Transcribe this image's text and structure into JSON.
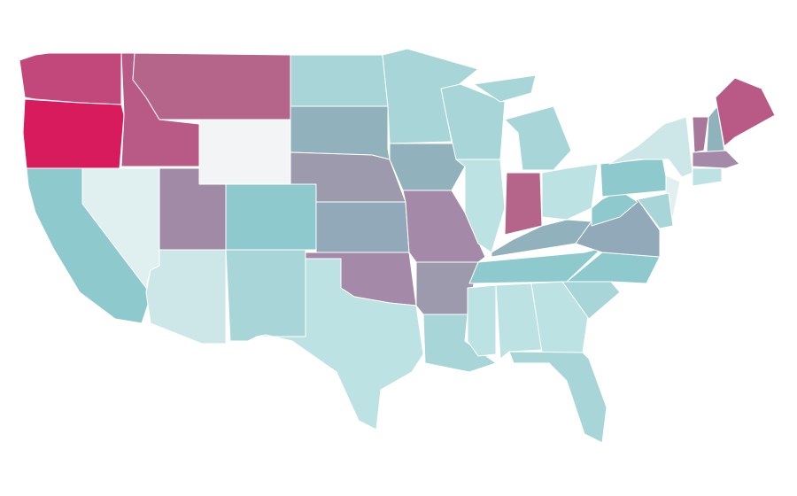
{
  "map": {
    "colors": [
      "#c2477a",
      "#d81b5c",
      "#b85a85",
      "#b56589",
      "#f3f4f5",
      "#e0f0f1",
      "#8ecacd",
      "#a08aa6",
      "#cde6e8",
      "#8ecacd",
      "#a8d6d8",
      "#a8d6d8",
      "#91b1bd",
      "#9d9aae",
      "#91a9b8",
      "#a48aa8",
      "#bde2e4",
      "#a8d6d8",
      "#91b1bd",
      "#a48aa8",
      "#9d9aae",
      "#a8d6d8",
      "#a8d6d8",
      "#bde2e4",
      "#a8d6d8",
      "#a8d6d8",
      "#b56589",
      "#bde2e4",
      "#91b1bd",
      "#8ecacd",
      "#bde2e4",
      "#bde2e4",
      "#bde2e4",
      "#a8d6d8",
      "#a8d6d8",
      "#8ecacd",
      "#91a9b8",
      "#8ecacd",
      "#8ecacd",
      "#cde6e8",
      "#e0f0f1",
      "#a8d6d8",
      "#a8789b",
      "#8eb3bd",
      "#b85a85",
      "#a48aa8",
      "#bde2e4"
    ]
  }
}
